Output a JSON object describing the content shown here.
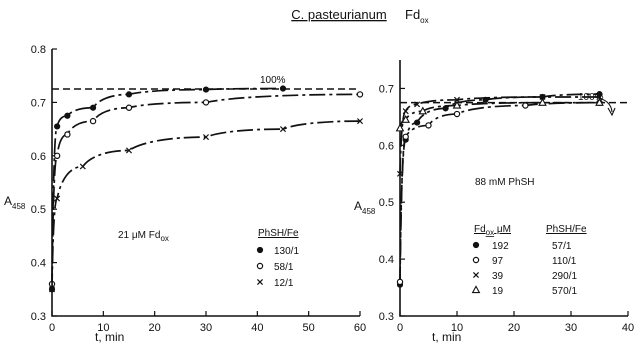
{
  "figure_title": {
    "organism": "C. pasteurianum",
    "protein": "Fd",
    "protein_sub": "ox"
  },
  "chart_data": [
    {
      "type": "line",
      "title": "",
      "xlabel": "t, min",
      "ylabel": "A",
      "ylabel_sub": "458",
      "xlim": [
        0,
        60
      ],
      "ylim": [
        0.3,
        0.8
      ],
      "xticks": [
        0,
        10,
        20,
        30,
        40,
        50,
        60
      ],
      "yticks": [
        0.3,
        0.4,
        0.5,
        0.6,
        0.7,
        0.8
      ],
      "ytick_labels": [
        "0.3",
        "0.4",
        "0.5",
        "0.6",
        "0.7",
        "0.8"
      ],
      "grid": false,
      "reference_line": {
        "y": 0.725,
        "label": "100%"
      },
      "condition_label": {
        "prefix": "21 μM Fd",
        "sub": "ox"
      },
      "legend": {
        "placement": "lower-right",
        "header": "PhSH/Fe"
      },
      "series": [
        {
          "name": "130/1",
          "marker": "dot",
          "x": [
            0,
            1,
            3,
            8,
            15,
            30,
            45
          ],
          "y": [
            0.35,
            0.655,
            0.675,
            0.69,
            0.715,
            0.724,
            0.726
          ]
        },
        {
          "name": "58/1",
          "marker": "circle",
          "x": [
            0,
            1,
            3,
            8,
            15,
            30,
            60
          ],
          "y": [
            0.36,
            0.6,
            0.64,
            0.665,
            0.69,
            0.7,
            0.715
          ]
        },
        {
          "name": "12/1",
          "marker": "cross",
          "x": [
            0,
            1,
            6,
            15,
            30,
            45,
            60
          ],
          "y": [
            0.35,
            0.52,
            0.58,
            0.61,
            0.635,
            0.65,
            0.665
          ]
        }
      ]
    },
    {
      "type": "line",
      "title": "",
      "xlabel": "t, min",
      "ylabel": "A",
      "ylabel_sub": "458",
      "xlim": [
        0,
        40
      ],
      "ylim": [
        0.3,
        0.75
      ],
      "xticks": [
        0,
        10,
        20,
        30,
        40
      ],
      "yticks": [
        0.3,
        0.4,
        0.5,
        0.6,
        0.7
      ],
      "ytick_labels": [
        "0.3",
        "0.4",
        "0.5",
        "0.6",
        "0.7"
      ],
      "grid": false,
      "reference_line": {
        "y": 0.675,
        "label": "100%"
      },
      "condition_label": {
        "prefix": "88 mM PhSH",
        "sub": ""
      },
      "legend": {
        "placement": "lower-right",
        "header_left_prefix": "Fd",
        "header_left_sub": "ox",
        "header_left_suffix": "μM",
        "header_right": "PhSH/Fe"
      },
      "series": [
        {
          "name": "192",
          "ratio": "57/1",
          "marker": "dot",
          "x": [
            0,
            1,
            3,
            8,
            15,
            25,
            35
          ],
          "y": [
            0.355,
            0.61,
            0.64,
            0.665,
            0.68,
            0.685,
            0.69
          ]
        },
        {
          "name": "97",
          "ratio": "110/1",
          "marker": "circle",
          "x": [
            0,
            1,
            5,
            10,
            22,
            35
          ],
          "y": [
            0.36,
            0.615,
            0.635,
            0.655,
            0.67,
            0.675
          ]
        },
        {
          "name": "39",
          "ratio": "290/1",
          "marker": "cross",
          "x": [
            0,
            1,
            3,
            10,
            25,
            35
          ],
          "y": [
            0.55,
            0.66,
            0.672,
            0.68,
            0.685,
            0.685
          ]
        },
        {
          "name": "19",
          "ratio": "570/1",
          "marker": "triangle",
          "x": [
            0,
            1,
            4,
            10,
            25,
            35
          ],
          "y": [
            0.63,
            0.645,
            0.66,
            0.67,
            0.675,
            0.675
          ]
        }
      ]
    }
  ]
}
